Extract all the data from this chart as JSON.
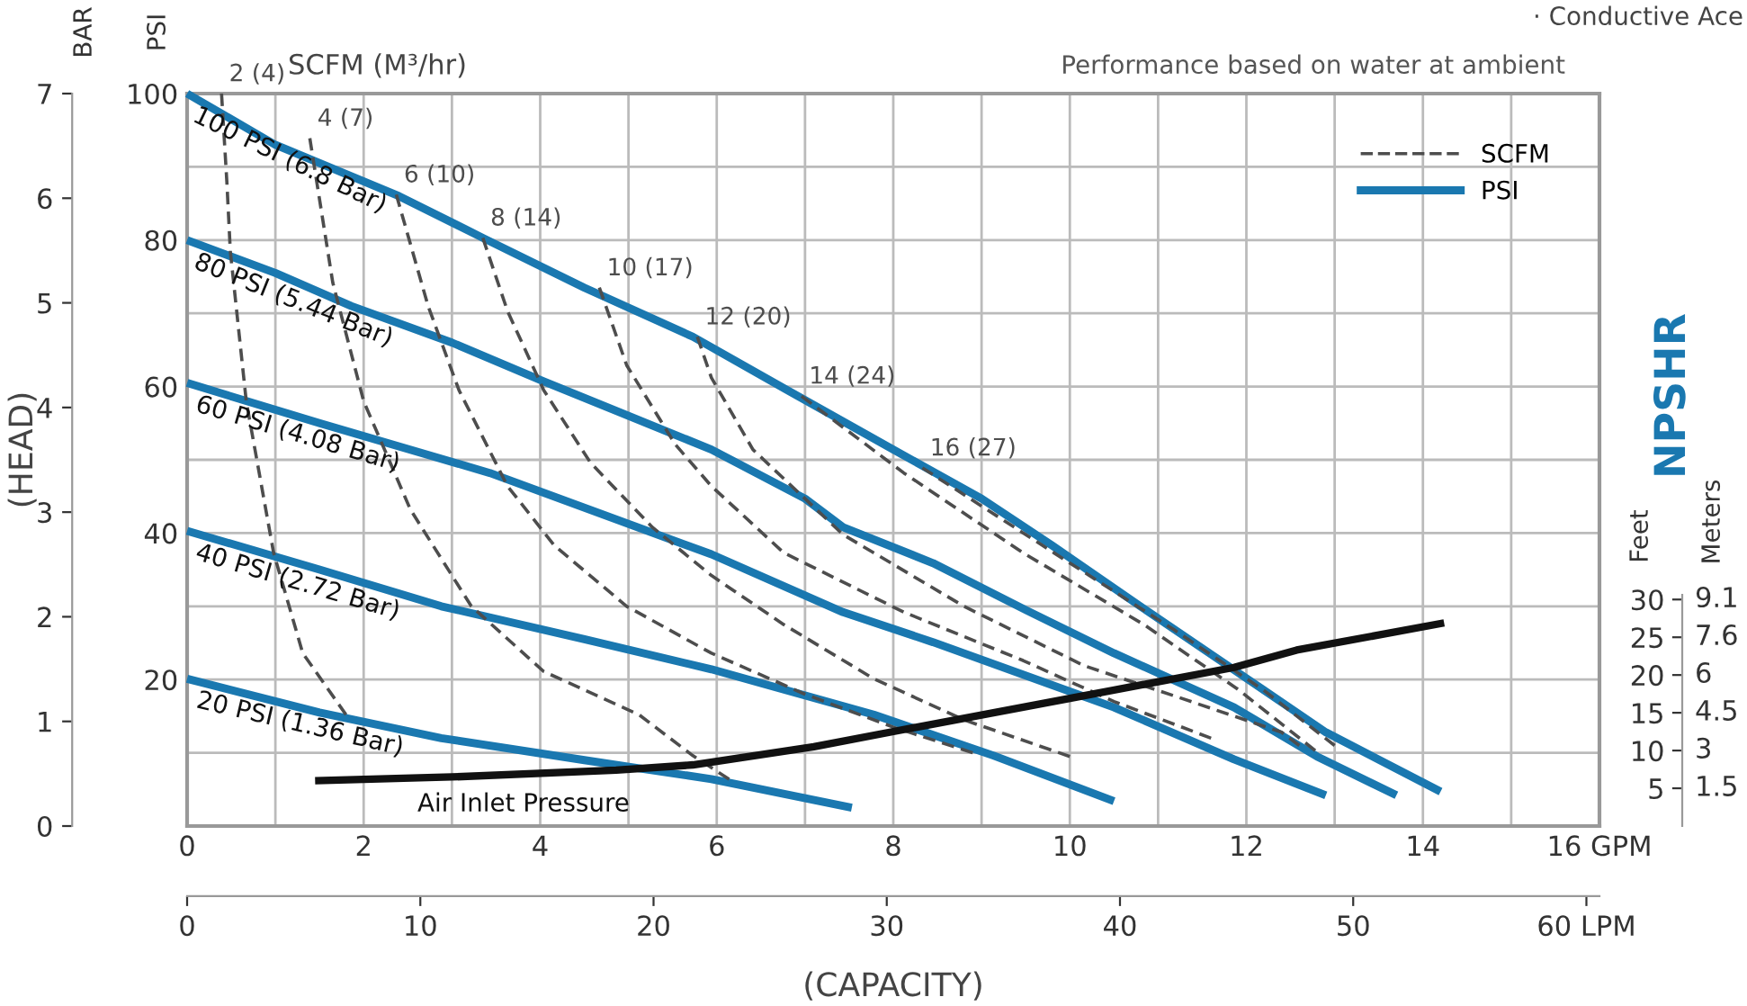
{
  "chart_data": {
    "type": "line",
    "xlim": [
      0,
      16
    ],
    "ylim": [
      0,
      100
    ],
    "y2lim": [
      0,
      7
    ],
    "y3lim": [
      0,
      97
    ],
    "x2lim": [
      0,
      60.56
    ],
    "xticks": [
      0,
      {
        "value": 1,
        "label": null
      },
      2,
      {
        "value": 3,
        "label": null
      },
      4,
      {
        "value": 5,
        "label": null
      },
      6,
      {
        "value": 7,
        "label": null
      },
      8,
      {
        "value": 9,
        "label": null
      },
      10,
      {
        "value": 11,
        "label": null
      },
      12,
      {
        "value": 13,
        "label": null
      },
      14,
      {
        "value": 15,
        "label": null
      },
      {
        "value": 16,
        "label": "16 GPM"
      }
    ],
    "yticks": [
      {
        "value": 10,
        "label": null
      },
      20,
      {
        "value": 30,
        "label": null
      },
      40,
      {
        "value": 50,
        "label": null
      },
      60,
      {
        "value": 70,
        "label": null
      },
      80,
      {
        "value": 90,
        "label": null
      },
      100
    ],
    "y2ticks": [
      0,
      1,
      2,
      3,
      4,
      5,
      6,
      7
    ],
    "y3ticks": [
      5,
      10,
      15,
      20,
      25,
      30
    ],
    "x2ticks": [
      0,
      10,
      20,
      30,
      40,
      50,
      {
        "value": 60,
        "label": "60 LPM"
      }
    ],
    "xlabel": "(CAPACITY)",
    "ylabel": "PSI",
    "y2label": "BAR",
    "y3label": "Feet",
    "grid": true,
    "annotations": [
      "SCFM",
      "PSI",
      "(HEAD)",
      "NPSHR",
      "SCFM (M³/hr)",
      "Performance based on water at ambient",
      "Air Inlet Pressure",
      "· Conductive Ace",
      "9.1",
      "7.6",
      "6",
      "4.5",
      "3",
      "1.5",
      "Meters"
    ],
    "series": [
      {
        "name": "100 PSI (6.8 Bar)",
        "color": "#1a78b0",
        "line_style": "solid",
        "x": [
          0,
          1,
          2.4,
          3.35,
          4.5,
          5.73,
          6.8,
          8,
          9,
          9.8,
          10.8,
          11.9,
          12.9,
          14.2
        ],
        "values": [
          100,
          93,
          86,
          80.3,
          73.5,
          66.8,
          59.5,
          51.4,
          44.7,
          38.3,
          30,
          21,
          12.8,
          4.7
        ]
      },
      {
        "name": "80 PSI (5.44 Bar)",
        "color": "#1a78b0",
        "line_style": "solid",
        "x": [
          0,
          1,
          1.86,
          3,
          4.04,
          5,
          5.94,
          7,
          7.43,
          8.45,
          9.5,
          10.5,
          11.86,
          12.8,
          13.7
        ],
        "values": [
          80,
          75.5,
          71,
          66,
          60.7,
          56,
          51.4,
          44.7,
          40.8,
          35.9,
          29.5,
          23.6,
          16.2,
          9.5,
          4.2
        ]
      },
      {
        "name": "60 PSI (4.08 Bar)",
        "color": "#1a78b0",
        "line_style": "solid",
        "x": [
          0,
          1.5,
          3.43,
          5.94,
          7.43,
          8.45,
          10.5,
          11.86,
          12.9
        ],
        "values": [
          60.5,
          55,
          48.2,
          37.1,
          29.2,
          25.1,
          16.2,
          9.1,
          4.2
        ]
      },
      {
        "name": "40 PSI (2.72 Bar)",
        "color": "#1a78b0",
        "line_style": "solid",
        "x": [
          0,
          1.5,
          2.88,
          4.5,
          5.94,
          7.78,
          9.14,
          10.5
        ],
        "values": [
          40.3,
          35,
          30,
          25.5,
          21.4,
          15.2,
          9.6,
          3.4
        ]
      },
      {
        "name": "20 PSI (1.36 Bar)",
        "color": "#1a78b0",
        "line_style": "solid",
        "x": [
          0,
          1.5,
          2.88,
          4.5,
          5.94,
          7.53
        ],
        "values": [
          20.1,
          15.5,
          12,
          9,
          6.4,
          2.5
        ]
      },
      {
        "name": "2 (4)",
        "color": "#4d4d4d",
        "line_style": "dashed",
        "x": [
          0.39,
          0.45,
          0.49,
          0.67,
          0.98,
          1.31,
          1.8
        ],
        "values": [
          100,
          88,
          78.4,
          58,
          37.3,
          23.6,
          15.2
        ]
      },
      {
        "name": "4 (7)",
        "color": "#4d4d4d",
        "line_style": "dashed",
        "x": [
          1.39,
          1.65,
          2.0,
          2.53,
          3.22,
          4.04,
          5.12,
          5.73,
          6.14
        ],
        "values": [
          93.9,
          74.2,
          58,
          43.2,
          30,
          21.1,
          15.2,
          9.6,
          6.4
        ]
      },
      {
        "name": "6 (10)",
        "color": "#4d4d4d",
        "line_style": "dashed",
        "x": [
          2.37,
          2.73,
          3.08,
          3.63,
          4.16,
          4.98,
          5.94,
          7.0,
          8.0,
          8.9
        ],
        "values": [
          86.2,
          71,
          59.5,
          46.4,
          38.3,
          30,
          23.6,
          18,
          13.5,
          10
        ]
      },
      {
        "name": "8 (14)",
        "color": "#4d4d4d",
        "line_style": "dashed",
        "x": [
          3.35,
          3.63,
          4.04,
          4.57,
          5.27,
          5.94,
          6.76,
          7.78,
          8.8,
          10.0
        ],
        "values": [
          80.3,
          70.3,
          59.5,
          49.6,
          40.8,
          34.2,
          27.5,
          20.1,
          14.5,
          9.5
        ]
      },
      {
        "name": "10 (17)",
        "color": "#4d4d4d",
        "line_style": "dashed",
        "x": [
          4.67,
          4.98,
          5.53,
          5.94,
          6.76,
          8.12,
          9.47,
          10.5,
          11.6
        ],
        "values": [
          73.5,
          62.9,
          52.1,
          46.4,
          37.3,
          29.2,
          22.6,
          17,
          12
        ]
      },
      {
        "name": "12 (20)",
        "color": "#4d4d4d",
        "line_style": "dashed",
        "x": [
          5.78,
          5.94,
          6.41,
          7.43,
          8.8,
          10.16,
          11.2,
          12.4,
          12.6
        ],
        "values": [
          66.8,
          61.2,
          51.4,
          39.8,
          30,
          21.9,
          17.7,
          12.8,
          11
        ]
      },
      {
        "name": "14 (24)",
        "color": "#4d4d4d",
        "line_style": "dashed",
        "x": [
          6.96,
          8.12,
          9.47,
          10.84,
          11.9,
          12.78
        ],
        "values": [
          58.7,
          48.2,
          37.3,
          27.5,
          18.7,
          10.3
        ]
      },
      {
        "name": "16 (27)",
        "color": "#4d4d4d",
        "line_style": "dashed",
        "x": [
          8.33,
          9.82,
          11.18,
          12.2,
          13.0
        ],
        "values": [
          48.9,
          37.3,
          26.8,
          18.5,
          11
        ]
      },
      {
        "color": "#111111",
        "line_style": "solid",
        "axis": "y3",
        "x": [
          1.45,
          3,
          4.86,
          5.73,
          7.1,
          8.04,
          10,
          11.86,
          12.57,
          14.24
        ],
        "values": [
          6,
          6.5,
          7.4,
          8.1,
          10.5,
          12.6,
          16.9,
          21,
          23.3,
          26.9
        ]
      }
    ]
  }
}
